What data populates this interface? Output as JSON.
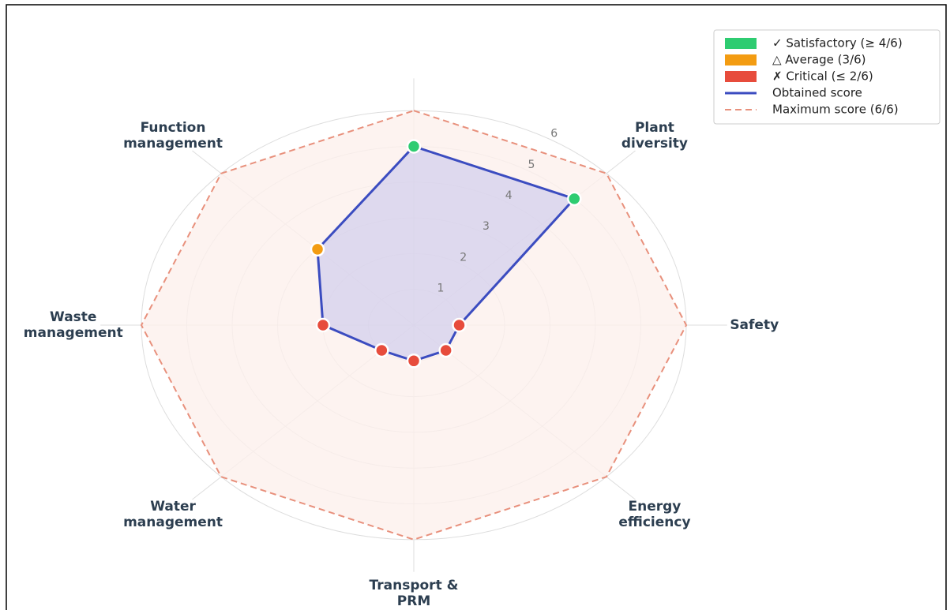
{
  "chart_data": {
    "type": "radar",
    "categories": [
      null,
      "Plant\ndiversity",
      "Safety",
      "Energy\nefficiency",
      "Transport &\nPRM",
      "Water\nmanagement",
      "Waste\nmanagement",
      "Function\nmanagement"
    ],
    "series": [
      {
        "name": "Obtained score",
        "color": "#3b4cc0",
        "fill": "#c9c8ec",
        "values": [
          5,
          5,
          1,
          1,
          1,
          1,
          2,
          3
        ],
        "marker_colors": [
          "#2ecc71",
          "#2ecc71",
          "#e74c3c",
          "#e74c3c",
          "#e74c3c",
          "#e74c3c",
          "#e74c3c",
          "#f39c12"
        ]
      },
      {
        "name": "Maximum score (6/6)",
        "color": "#e8907c",
        "fill": "#fdf0ec",
        "dashed": true,
        "values": [
          6,
          6,
          6,
          6,
          6,
          6,
          6,
          6
        ]
      }
    ],
    "legend_items": [
      {
        "name": "✓ Satisfactory (≥ 4/6)",
        "color": "#2ecc71"
      },
      {
        "name": "△ Average (3/6)",
        "color": "#f39c12"
      },
      {
        "name": "✗ Critical (≤ 2/6)",
        "color": "#e74c3c"
      }
    ],
    "ylim": [
      0,
      6.9
    ],
    "yticks": [
      1,
      2,
      3,
      4,
      5,
      6
    ],
    "grid": true,
    "legend": "upper right"
  }
}
